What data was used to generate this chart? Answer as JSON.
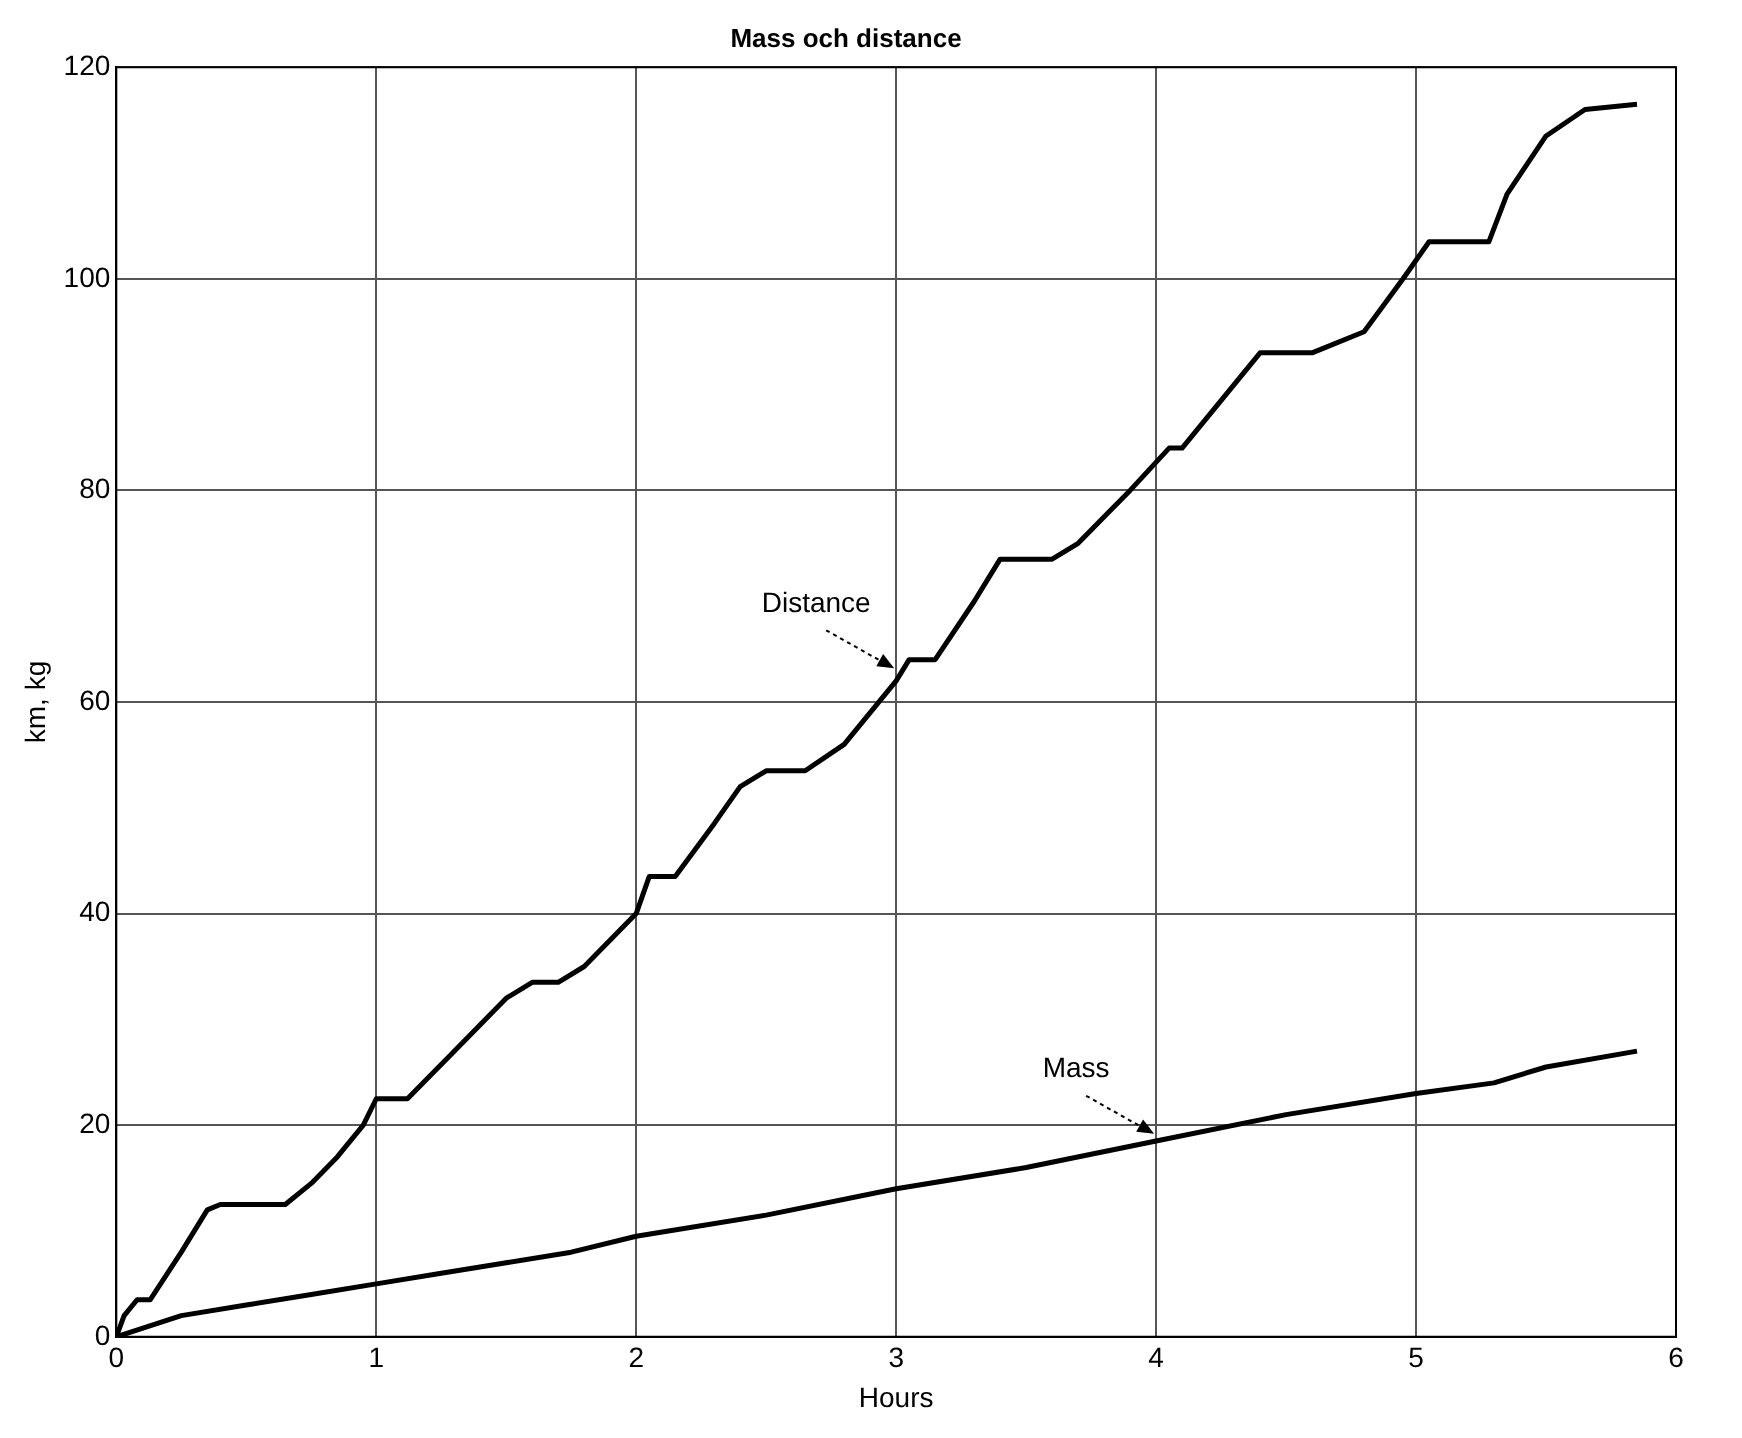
{
  "chart_data": {
    "type": "line",
    "title": "Mass och distance",
    "xlabel": "Hours",
    "ylabel": "km, kg",
    "xlim": [
      0,
      6
    ],
    "xticks": [
      0,
      1,
      2,
      3,
      4,
      5,
      6
    ],
    "ylim": [
      0,
      120
    ],
    "yticks": [
      0,
      20,
      40,
      60,
      80,
      100,
      120
    ],
    "grid": true,
    "legend": false,
    "marker": "none",
    "line_style": "solid",
    "annotations": [
      {
        "text": "Distance",
        "x": 3.0,
        "y": 63
      },
      {
        "text": "Mass",
        "x": 4.0,
        "y": 19
      }
    ],
    "series": [
      {
        "color": "#000000",
        "x": [
          0,
          0.03,
          0.08,
          0.13,
          0.25,
          0.35,
          0.4,
          0.65,
          0.75,
          0.85,
          0.95,
          1.0,
          1.12,
          1.3,
          1.5,
          1.6,
          1.7,
          1.8,
          2.0,
          2.05,
          2.15,
          2.3,
          2.4,
          2.5,
          2.65,
          2.8,
          3.0,
          3.05,
          3.15,
          3.3,
          3.4,
          3.6,
          3.7,
          3.9,
          4.05,
          4.1,
          4.3,
          4.4,
          4.6,
          4.8,
          4.95,
          5.05,
          5.28,
          5.35,
          5.5,
          5.65,
          5.85
        ],
        "values": [
          0,
          2,
          3.5,
          3.5,
          8,
          12,
          12.5,
          12.5,
          14.5,
          17,
          20,
          22.5,
          22.5,
          27,
          32,
          33.5,
          33.5,
          35,
          40,
          43.5,
          43.5,
          48.5,
          52,
          53.5,
          53.5,
          56,
          62,
          64,
          64,
          69.5,
          73.5,
          73.5,
          75,
          80,
          84,
          84,
          90,
          93,
          93,
          95,
          100,
          103.5,
          103.5,
          108,
          113.5,
          116,
          116.5
        ]
      },
      {
        "color": "#000000",
        "x": [
          0,
          0.25,
          0.5,
          0.75,
          1,
          1.25,
          1.5,
          1.75,
          2,
          2.5,
          3,
          3.5,
          4,
          4.5,
          5,
          5.3,
          5.5,
          5.85
        ],
        "values": [
          0,
          2,
          3,
          4,
          5,
          6,
          7,
          8,
          9.5,
          11.5,
          14,
          16,
          18.5,
          21,
          23,
          24,
          25.5,
          27
        ]
      }
    ]
  }
}
